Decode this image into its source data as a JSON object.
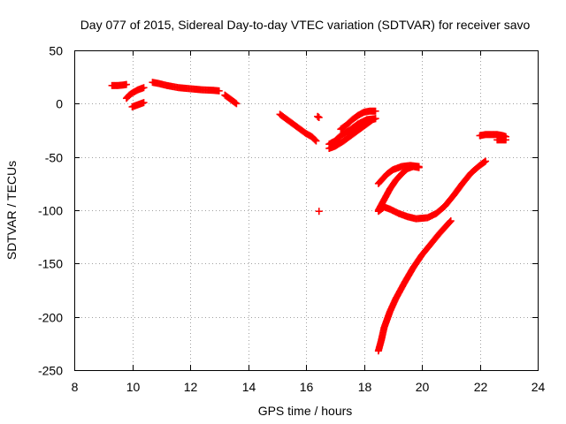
{
  "chart_data": {
    "type": "scatter",
    "title": "Day 077 of 2015, Sidereal Day-to-day VTEC variation (SDTVAR) for receiver savo",
    "xlabel": "GPS time / hours",
    "ylabel": "SDTVAR / TECUs",
    "xlim": [
      8,
      24
    ],
    "ylim": [
      -250,
      50
    ],
    "xticks": [
      8,
      10,
      12,
      14,
      16,
      18,
      20,
      22,
      24
    ],
    "yticks": [
      -250,
      -200,
      -150,
      -100,
      -50,
      0,
      50
    ],
    "xtick_labels": [
      "8",
      "10",
      "12",
      "14",
      "16",
      "18",
      "20",
      "22",
      "24"
    ],
    "ytick_labels": [
      "-250",
      "-200",
      "-150",
      "-100",
      "-50",
      "0",
      "50"
    ],
    "grid": true,
    "grid_style": "dotted",
    "marker": "+",
    "series_color": "#ff0000",
    "series": [
      {
        "points": [
          [
            9.3,
            17
          ],
          [
            9.5,
            17
          ],
          [
            9.7,
            17.5
          ],
          [
            9.8,
            18
          ]
        ]
      },
      {
        "points": [
          [
            9.8,
            5
          ],
          [
            9.9,
            8
          ],
          [
            10.0,
            10
          ],
          [
            10.2,
            13
          ],
          [
            10.4,
            15
          ]
        ]
      },
      {
        "points": [
          [
            10.0,
            -3
          ],
          [
            10.1,
            -2
          ],
          [
            10.2,
            -1
          ],
          [
            10.3,
            0
          ],
          [
            10.4,
            1
          ]
        ]
      },
      {
        "points": [
          [
            10.7,
            20
          ],
          [
            10.9,
            19
          ],
          [
            11.2,
            17
          ],
          [
            11.6,
            15
          ],
          [
            12.0,
            14
          ],
          [
            12.4,
            13
          ],
          [
            12.8,
            12.5
          ],
          [
            13.0,
            12
          ]
        ]
      },
      {
        "points": [
          [
            13.2,
            8
          ],
          [
            13.3,
            6
          ],
          [
            13.4,
            4
          ],
          [
            13.5,
            2
          ],
          [
            13.6,
            0
          ]
        ]
      },
      {
        "points": [
          [
            15.1,
            -10
          ],
          [
            15.4,
            -16
          ],
          [
            15.7,
            -22
          ],
          [
            16.0,
            -28
          ],
          [
            16.2,
            -31
          ],
          [
            16.35,
            -35
          ]
        ]
      },
      {
        "points": [
          [
            16.4,
            -12
          ],
          [
            16.45,
            -13
          ]
        ]
      },
      {
        "points": [
          [
            16.45,
            -101
          ]
        ]
      },
      {
        "points": [
          [
            16.8,
            -42
          ],
          [
            17.0,
            -40
          ],
          [
            17.3,
            -35
          ],
          [
            17.6,
            -29
          ],
          [
            17.9,
            -23
          ],
          [
            18.1,
            -19
          ],
          [
            18.3,
            -15
          ],
          [
            18.4,
            -14
          ]
        ]
      },
      {
        "points": [
          [
            16.8,
            -38
          ],
          [
            17.0,
            -35
          ],
          [
            17.2,
            -30
          ],
          [
            17.5,
            -25
          ],
          [
            17.8,
            -19
          ],
          [
            18.1,
            -15
          ],
          [
            18.4,
            -14
          ]
        ]
      },
      {
        "points": [
          [
            17.2,
            -24
          ],
          [
            17.4,
            -20
          ],
          [
            17.6,
            -15
          ],
          [
            17.8,
            -11
          ],
          [
            18.0,
            -8
          ],
          [
            18.2,
            -7
          ],
          [
            18.4,
            -7
          ]
        ]
      },
      {
        "points": [
          [
            18.5,
            -75
          ],
          [
            18.8,
            -66
          ],
          [
            19.0,
            -62
          ],
          [
            19.3,
            -59
          ],
          [
            19.6,
            -58
          ],
          [
            19.9,
            -59
          ]
        ]
      },
      {
        "points": [
          [
            18.5,
            -100
          ],
          [
            18.7,
            -90
          ],
          [
            18.9,
            -80
          ],
          [
            19.1,
            -72
          ],
          [
            19.3,
            -66
          ],
          [
            19.5,
            -61
          ],
          [
            19.7,
            -59
          ],
          [
            19.9,
            -60
          ]
        ]
      },
      {
        "points": [
          [
            18.5,
            -101
          ],
          [
            18.7,
            -97
          ],
          [
            18.9,
            -99
          ],
          [
            19.2,
            -103
          ],
          [
            19.5,
            -106
          ],
          [
            19.8,
            -108
          ],
          [
            20.2,
            -107
          ],
          [
            20.5,
            -103
          ],
          [
            20.8,
            -96
          ],
          [
            21.1,
            -86
          ],
          [
            21.4,
            -75
          ],
          [
            21.7,
            -65
          ],
          [
            22.0,
            -58
          ],
          [
            22.2,
            -54
          ]
        ]
      },
      {
        "points": [
          [
            18.5,
            -232
          ],
          [
            18.6,
            -222
          ],
          [
            18.7,
            -210
          ],
          [
            18.9,
            -195
          ],
          [
            19.1,
            -183
          ],
          [
            19.4,
            -168
          ],
          [
            19.7,
            -154
          ],
          [
            20.0,
            -142
          ],
          [
            20.3,
            -132
          ],
          [
            20.6,
            -122
          ],
          [
            20.8,
            -116
          ],
          [
            21.0,
            -110
          ]
        ]
      },
      {
        "points": [
          [
            22.0,
            -30
          ],
          [
            22.2,
            -29
          ],
          [
            22.4,
            -29
          ],
          [
            22.6,
            -29
          ],
          [
            22.8,
            -30
          ],
          [
            22.9,
            -31
          ]
        ]
      },
      {
        "points": [
          [
            22.6,
            -34
          ],
          [
            22.7,
            -34
          ],
          [
            22.8,
            -34
          ],
          [
            22.9,
            -34
          ]
        ]
      }
    ]
  }
}
